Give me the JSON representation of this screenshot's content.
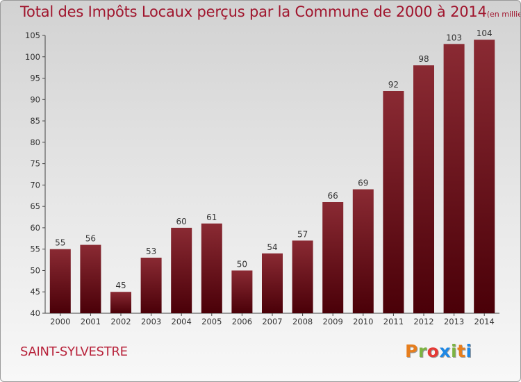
{
  "chart_data": {
    "type": "bar",
    "title": "Total des Impôts Locaux perçus par la Commune de 2000 à 2014",
    "title_unit": "(en milliers d'€)",
    "categories": [
      "2000",
      "2001",
      "2002",
      "2003",
      "2004",
      "2005",
      "2006",
      "2007",
      "2008",
      "2009",
      "2010",
      "2011",
      "2012",
      "2013",
      "2014"
    ],
    "values": [
      55,
      56,
      45,
      53,
      60,
      61,
      50,
      54,
      57,
      66,
      69,
      92,
      98,
      103,
      104
    ],
    "ylim": [
      40,
      105
    ],
    "yticks": [
      40,
      45,
      50,
      55,
      60,
      65,
      70,
      75,
      80,
      85,
      90,
      95,
      100,
      105
    ],
    "xlabel": "",
    "ylabel": "",
    "grid": false,
    "bar_color": "#7a1c25",
    "bar_color_dark": "#4a0008"
  },
  "footer": {
    "commune": "SAINT-SYLVESTRE",
    "logo_letters": [
      "P",
      "r",
      "o",
      "x",
      "i",
      "t",
      "i"
    ],
    "logo_colors": [
      "#e67e1e",
      "#7cb342",
      "#e53935",
      "#1e88e5",
      "#7cb342",
      "#e67e1e",
      "#1e88e5"
    ]
  }
}
